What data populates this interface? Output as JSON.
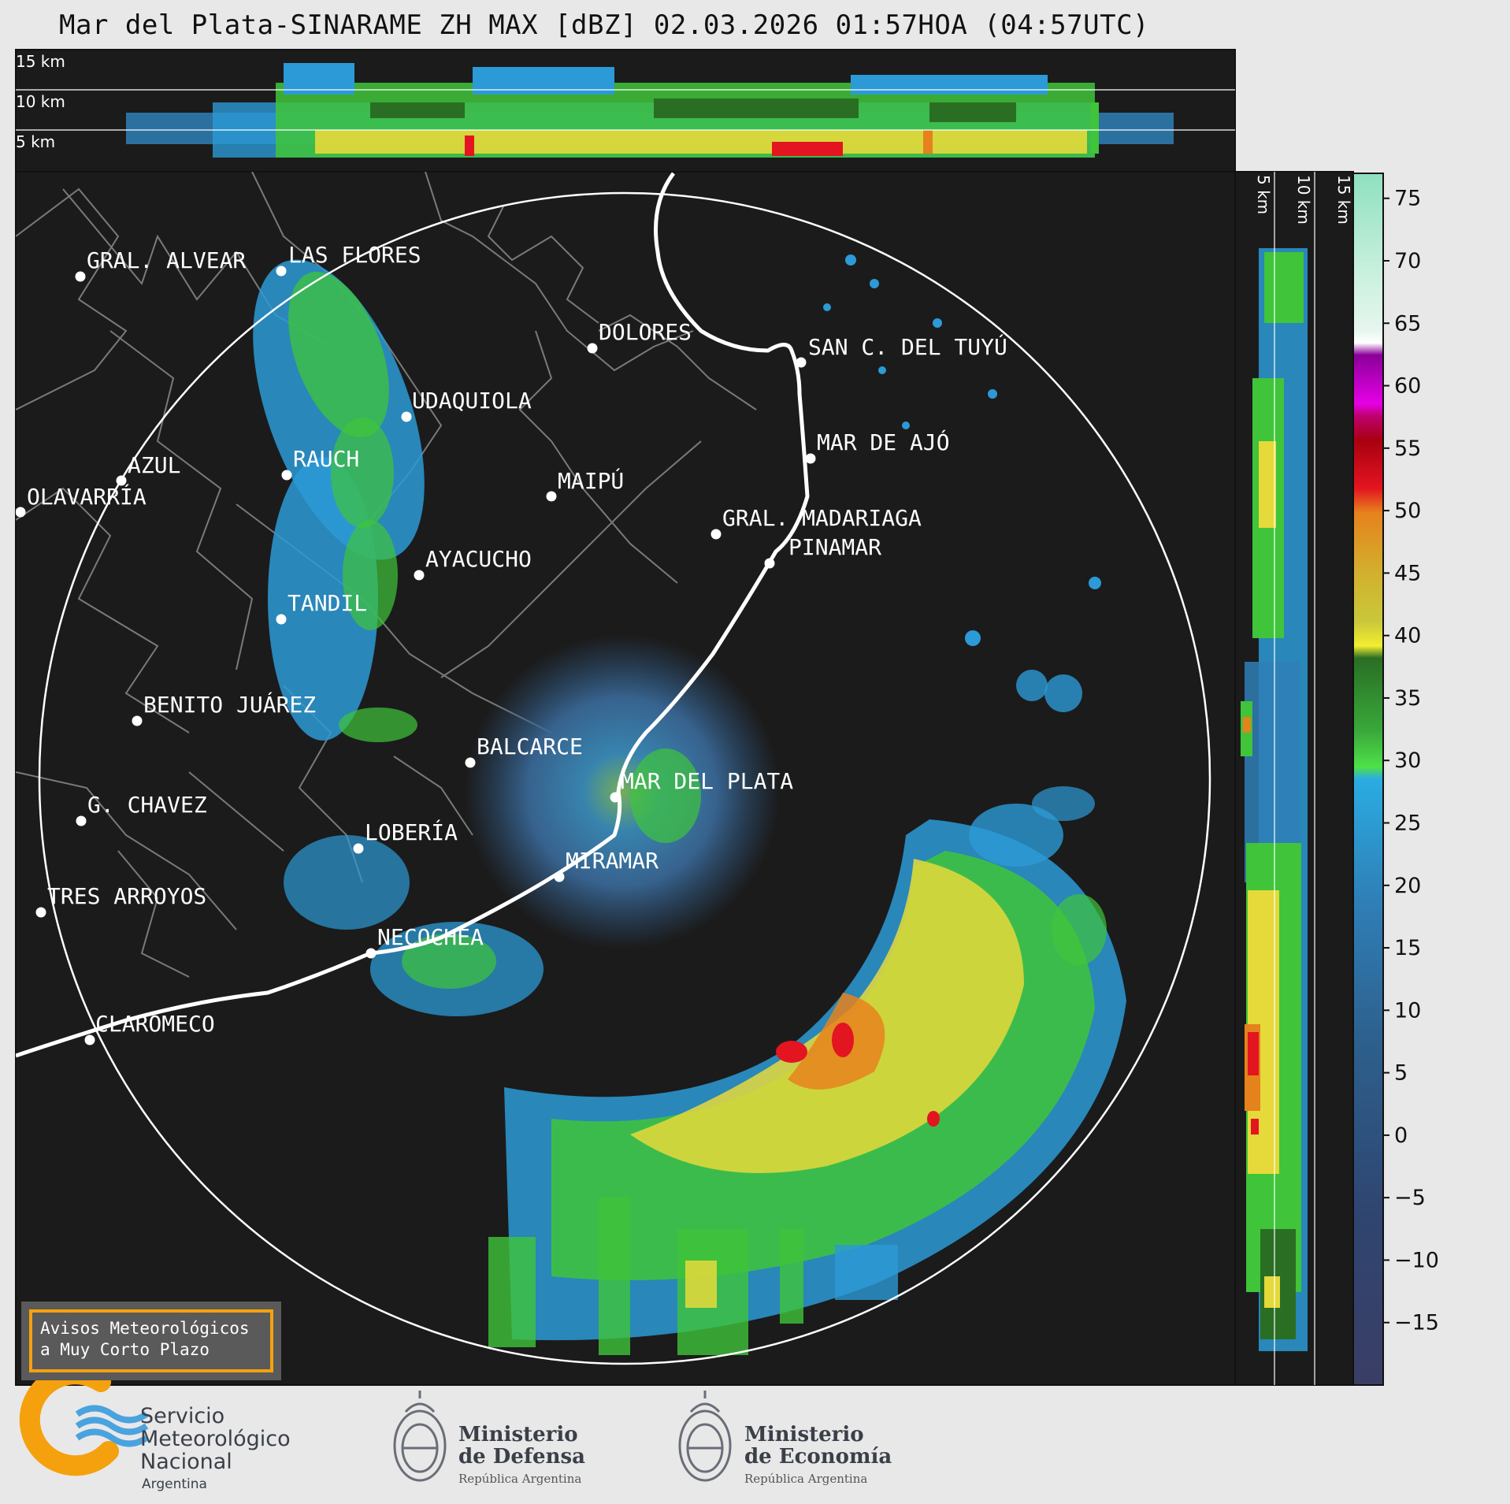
{
  "title": "Mar del Plata-SINARAME ZH MAX [dBZ] 02.03.2026 01:57HOA (04:57UTC)",
  "height_labels": [
    "15 km",
    "10 km",
    "5 km"
  ],
  "cities": [
    {
      "name": "GRAL. ALVEAR"
    },
    {
      "name": "LAS FLORES"
    },
    {
      "name": "DOLORES"
    },
    {
      "name": "SAN C. DEL TUYÚ"
    },
    {
      "name": "UDAQUIOLA"
    },
    {
      "name": "RAUCH"
    },
    {
      "name": "AZUL"
    },
    {
      "name": "OLAVARRÍA"
    },
    {
      "name": "MAIPÚ"
    },
    {
      "name": "MAR DE AJÓ"
    },
    {
      "name": "GRAL. MADARIAGA"
    },
    {
      "name": "PINAMAR"
    },
    {
      "name": "AYACUCHO"
    },
    {
      "name": "TANDIL"
    },
    {
      "name": "BENITO JUÁREZ"
    },
    {
      "name": "BALCARCE"
    },
    {
      "name": "MAR DEL PLATA"
    },
    {
      "name": "G. CHAVEZ"
    },
    {
      "name": "LOBERÍA"
    },
    {
      "name": "MIRAMAR"
    },
    {
      "name": "TRES ARROYOS"
    },
    {
      "name": "NECOCHEA"
    },
    {
      "name": "CLAROMECO"
    }
  ],
  "colorbar": {
    "ticks": [
      "75",
      "70",
      "65",
      "60",
      "55",
      "50",
      "45",
      "40",
      "35",
      "30",
      "25",
      "20",
      "15",
      "10",
      "5",
      "0",
      "−5",
      "−10",
      "−15"
    ],
    "min": -20,
    "max": 77
  },
  "avisos": {
    "line1": "Avisos Meteorológicos",
    "line2": "a Muy Corto Plazo"
  },
  "logos": {
    "smn_line1": "Servicio",
    "smn_line2": "Meteorológico",
    "smn_line3": "Nacional",
    "smn_country": "Argentina",
    "mindef_line1": "Ministerio",
    "mindef_line2": "de Defensa",
    "mindef_sub": "República Argentina",
    "minecon_line1": "Ministerio",
    "minecon_line2": "de Economía",
    "minecon_sub": "República Argentina"
  },
  "colors": {
    "panel_bg": "#1b1b1b",
    "border_lines": "#7a7a7a",
    "coastline": "#ffffff",
    "smn_orange": "#f5a10d",
    "smn_blue": "#4aa3df"
  }
}
